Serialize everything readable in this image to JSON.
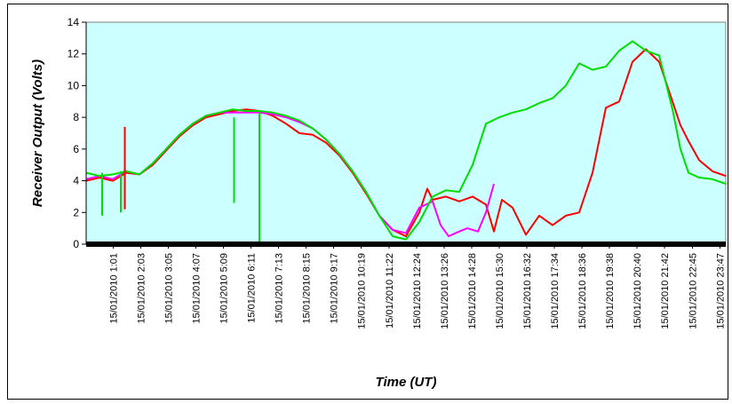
{
  "chart_data": {
    "type": "line",
    "title": "",
    "xlabel": "Time (UT)",
    "ylabel": "Receiver Output (Volts)",
    "ylim": [
      0,
      14
    ],
    "yticks": [
      "0",
      "2",
      "4",
      "6",
      "8",
      "10",
      "12",
      "14"
    ],
    "xlim": [
      0,
      24
    ],
    "xticks": [
      {
        "label": "15/01/2010 1:01",
        "value": 1.017
      },
      {
        "label": "15/01/2010 2:03",
        "value": 2.05
      },
      {
        "label": "15/01/2010 3:05",
        "value": 3.083
      },
      {
        "label": "15/01/2010 4:07",
        "value": 4.117
      },
      {
        "label": "15/01/2010 5:09",
        "value": 5.15
      },
      {
        "label": "15/01/2010 6:11",
        "value": 6.183
      },
      {
        "label": "15/01/2010 7:13",
        "value": 7.217
      },
      {
        "label": "15/01/2010 8:15",
        "value": 8.25
      },
      {
        "label": "15/01/2010 9:17",
        "value": 9.283
      },
      {
        "label": "15/01/2010 10:19",
        "value": 10.317
      },
      {
        "label": "15/01/2010 11:22",
        "value": 11.367
      },
      {
        "label": "15/01/2010 12:24",
        "value": 12.4
      },
      {
        "label": "15/01/2010 13:26",
        "value": 13.433
      },
      {
        "label": "15/01/2010 14:28",
        "value": 14.467
      },
      {
        "label": "15/01/2010 15:30",
        "value": 15.5
      },
      {
        "label": "15/01/2010 16:32",
        "value": 16.533
      },
      {
        "label": "15/01/2010 17:34",
        "value": 17.567
      },
      {
        "label": "15/01/2010 18:36",
        "value": 18.6
      },
      {
        "label": "15/01/2010 19:38",
        "value": 19.633
      },
      {
        "label": "15/01/2010 20:40",
        "value": 20.667
      },
      {
        "label": "15/01/2010 21:42",
        "value": 21.7
      },
      {
        "label": "15/01/2010 22:45",
        "value": 22.75
      },
      {
        "label": "15/01/2010 23:47",
        "value": 23.783
      }
    ],
    "grid": false,
    "legend": "none",
    "plot_background": "#ccffff",
    "series": [
      {
        "color": "#ff0000",
        "x": [
          0,
          0.5,
          1.0,
          1.5,
          2.0,
          2.5,
          3.0,
          3.5,
          4.0,
          4.5,
          5.0,
          5.5,
          6.0,
          6.5,
          7.0,
          7.5,
          8.0,
          8.5,
          9.0,
          9.5,
          10.0,
          10.5,
          11.0,
          11.5,
          12.0,
          12.5,
          12.8,
          13.0,
          13.5,
          14.0,
          14.5,
          15.0,
          15.3,
          15.6,
          16.0,
          16.5,
          17.0,
          17.5,
          18.0,
          18.5,
          19.0,
          19.5,
          20.0,
          20.5,
          21.0,
          21.5,
          22.0,
          22.3,
          22.6,
          23.0,
          23.5,
          24.0
        ],
        "y": [
          4.0,
          4.2,
          4.0,
          4.5,
          4.4,
          5.0,
          5.9,
          6.8,
          7.5,
          8.0,
          8.2,
          8.4,
          8.5,
          8.4,
          8.1,
          7.6,
          7.0,
          6.9,
          6.4,
          5.6,
          4.5,
          3.2,
          1.8,
          0.9,
          0.5,
          2.0,
          3.5,
          2.8,
          3.0,
          2.7,
          3.0,
          2.5,
          0.8,
          2.8,
          2.3,
          0.6,
          1.8,
          1.2,
          1.8,
          2.0,
          4.5,
          8.6,
          9.0,
          11.5,
          12.3,
          11.5,
          9.0,
          7.5,
          6.5,
          5.3,
          4.6,
          4.3
        ]
      },
      {
        "color": "#ff00ff",
        "x": [
          0,
          0.5,
          1.0,
          1.5,
          2.0,
          2.5,
          3.0,
          3.5,
          4.0,
          4.5,
          5.0,
          5.5,
          6.0,
          6.5,
          7.0,
          7.5,
          8.0,
          8.5,
          9.0,
          9.5,
          10.0,
          10.5,
          11.0,
          11.5,
          12.0,
          12.5,
          13.0,
          13.3,
          13.6,
          14.0,
          14.3,
          14.7,
          15.0,
          15.3
        ],
        "y": [
          4.1,
          4.3,
          4.1,
          4.6,
          4.4,
          5.1,
          6.0,
          6.9,
          7.6,
          8.1,
          8.3,
          8.3,
          8.3,
          8.3,
          8.2,
          8.0,
          7.7,
          7.3,
          6.6,
          5.7,
          4.6,
          3.3,
          1.8,
          0.9,
          0.7,
          2.3,
          2.7,
          1.2,
          0.5,
          0.8,
          1.0,
          0.8,
          2.0,
          3.8
        ]
      },
      {
        "color": "#00dd00",
        "x": [
          0,
          0.5,
          1.0,
          1.5,
          2.0,
          2.5,
          3.0,
          3.5,
          4.0,
          4.5,
          5.0,
          5.5,
          6.0,
          6.5,
          7.0,
          7.5,
          8.0,
          8.5,
          9.0,
          9.5,
          10.0,
          10.5,
          11.0,
          11.5,
          12.0,
          12.5,
          13.0,
          13.5,
          14.0,
          14.5,
          15.0,
          15.5,
          16.0,
          16.5,
          17.0,
          17.5,
          18.0,
          18.5,
          19.0,
          19.5,
          20.0,
          20.5,
          21.0,
          21.5,
          22.0,
          22.3,
          22.6,
          23.0,
          23.5,
          24.0
        ],
        "y": [
          4.5,
          4.3,
          4.4,
          4.6,
          4.4,
          5.1,
          6.0,
          6.9,
          7.6,
          8.1,
          8.3,
          8.5,
          8.4,
          8.4,
          8.3,
          8.1,
          7.8,
          7.3,
          6.6,
          5.7,
          4.6,
          3.3,
          1.8,
          0.5,
          0.3,
          1.4,
          3.0,
          3.4,
          3.3,
          5.0,
          7.6,
          8.0,
          8.3,
          8.5,
          8.9,
          9.2,
          10.0,
          11.4,
          11.0,
          11.2,
          12.2,
          12.8,
          12.2,
          11.9,
          8.5,
          6.0,
          4.5,
          4.2,
          4.1,
          3.8
        ]
      }
    ],
    "spikes": [
      {
        "color": "#ff0000",
        "x": 1.45,
        "y": [
          2.2,
          7.4
        ]
      },
      {
        "color": "#00dd00",
        "x": 0.6,
        "y": [
          1.8,
          4.5
        ]
      },
      {
        "color": "#00dd00",
        "x": 1.3,
        "y": [
          2.0,
          4.6
        ]
      },
      {
        "color": "#00dd00",
        "x": 5.55,
        "y": [
          2.6,
          8.0
        ]
      },
      {
        "color": "#00dd00",
        "x": 6.5,
        "y": [
          0.1,
          8.3
        ]
      }
    ]
  }
}
